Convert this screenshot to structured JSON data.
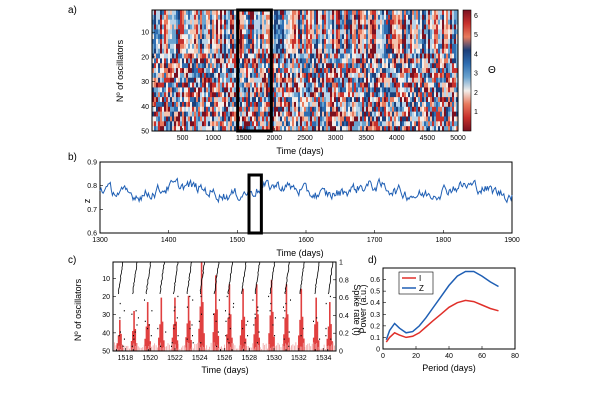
{
  "panel_labels": {
    "a": "a)",
    "b": "b)",
    "c": "c)",
    "d": "d)"
  },
  "chart_data": [
    {
      "id": "a",
      "type": "heatmap",
      "title": "",
      "xlabel": "Time (days)",
      "ylabel": "Nº of oscillators",
      "xlim": [
        0,
        5000
      ],
      "ylim": [
        50,
        1
      ],
      "xticks": [
        500,
        1000,
        1500,
        2000,
        2500,
        3000,
        3500,
        4000,
        4500,
        5000
      ],
      "yticks": [
        10,
        20,
        30,
        40,
        50
      ],
      "colorbar": {
        "label": "Θ",
        "range": [
          0,
          6.28
        ],
        "ticks": [
          1,
          2,
          3,
          4,
          5,
          6
        ]
      },
      "highlight_box": {
        "x_start": 1400,
        "x_end": 1950
      },
      "note": "phase raster: vertical stripes, more disordered below ~oscillator 20"
    },
    {
      "id": "b",
      "type": "line",
      "xlabel": "Time (days)",
      "ylabel": "z",
      "xlim": [
        1300,
        1900
      ],
      "ylim": [
        0.6,
        0.9
      ],
      "xticks": [
        1300,
        1400,
        1500,
        1600,
        1700,
        1800,
        1900
      ],
      "yticks": [
        0.6,
        0.7,
        0.8,
        0.9
      ],
      "series": [
        {
          "name": "z",
          "color": "#1f5fb4",
          "mean": 0.78,
          "amplitude": 0.05
        }
      ],
      "highlight_box": {
        "x_start": 1517,
        "x_end": 1535
      }
    },
    {
      "id": "c",
      "type": "raster",
      "xlabel": "Time (days)",
      "ylabel": "Nº of oscillators",
      "y2label": "Spike rate (t)",
      "xlim": [
        1517,
        1535
      ],
      "ylim": [
        50,
        1
      ],
      "y2lim": [
        0,
        1
      ],
      "xticks": [
        1518,
        1520,
        1522,
        1524,
        1526,
        1528,
        1530,
        1532,
        1534
      ],
      "yticks": [
        10,
        20,
        30,
        40,
        50
      ],
      "y2ticks": [
        0,
        0.2,
        0.4,
        0.6,
        0.8,
        1
      ],
      "spike_rate_color": "#e04040",
      "spike_peaks": [
        {
          "x": 1517.55,
          "value": 0.35
        },
        {
          "x": 1518.7,
          "value": 0.45
        },
        {
          "x": 1519.8,
          "value": 0.55
        },
        {
          "x": 1520.9,
          "value": 0.6
        },
        {
          "x": 1522.0,
          "value": 0.6
        },
        {
          "x": 1523.1,
          "value": 0.62
        },
        {
          "x": 1524.15,
          "value": 1.0
        },
        {
          "x": 1525.3,
          "value": 0.85
        },
        {
          "x": 1526.4,
          "value": 0.75
        },
        {
          "x": 1527.5,
          "value": 0.7
        },
        {
          "x": 1528.6,
          "value": 0.75
        },
        {
          "x": 1529.8,
          "value": 0.8
        },
        {
          "x": 1531.0,
          "value": 0.75
        },
        {
          "x": 1532.2,
          "value": 0.7
        },
        {
          "x": 1533.4,
          "value": 0.6
        },
        {
          "x": 1534.5,
          "value": 0.55
        }
      ]
    },
    {
      "id": "d",
      "type": "line",
      "xlabel": "Period (days)",
      "ylabel": "Power (a.u.)",
      "xlim": [
        0,
        80
      ],
      "ylim": [
        0,
        0.7
      ],
      "xticks": [
        0,
        20,
        40,
        60,
        80
      ],
      "yticks": [
        0,
        0.1,
        0.2,
        0.3,
        0.4,
        0.5,
        0.6
      ],
      "legend": "top-left",
      "series": [
        {
          "name": "I",
          "color": "#e0302a",
          "x": [
            2,
            4,
            7,
            10,
            14,
            18,
            22,
            26,
            30,
            35,
            40,
            45,
            50,
            55,
            60,
            65,
            70
          ],
          "y": [
            0.06,
            0.1,
            0.14,
            0.12,
            0.1,
            0.11,
            0.14,
            0.19,
            0.24,
            0.3,
            0.36,
            0.4,
            0.42,
            0.41,
            0.38,
            0.35,
            0.33
          ]
        },
        {
          "name": "Z",
          "color": "#1f5fb4",
          "x": [
            2,
            4,
            7,
            10,
            14,
            18,
            22,
            26,
            30,
            35,
            40,
            45,
            50,
            55,
            60,
            65,
            70
          ],
          "y": [
            0.08,
            0.16,
            0.22,
            0.18,
            0.14,
            0.15,
            0.2,
            0.27,
            0.35,
            0.45,
            0.55,
            0.63,
            0.67,
            0.67,
            0.63,
            0.58,
            0.54
          ]
        }
      ]
    }
  ]
}
